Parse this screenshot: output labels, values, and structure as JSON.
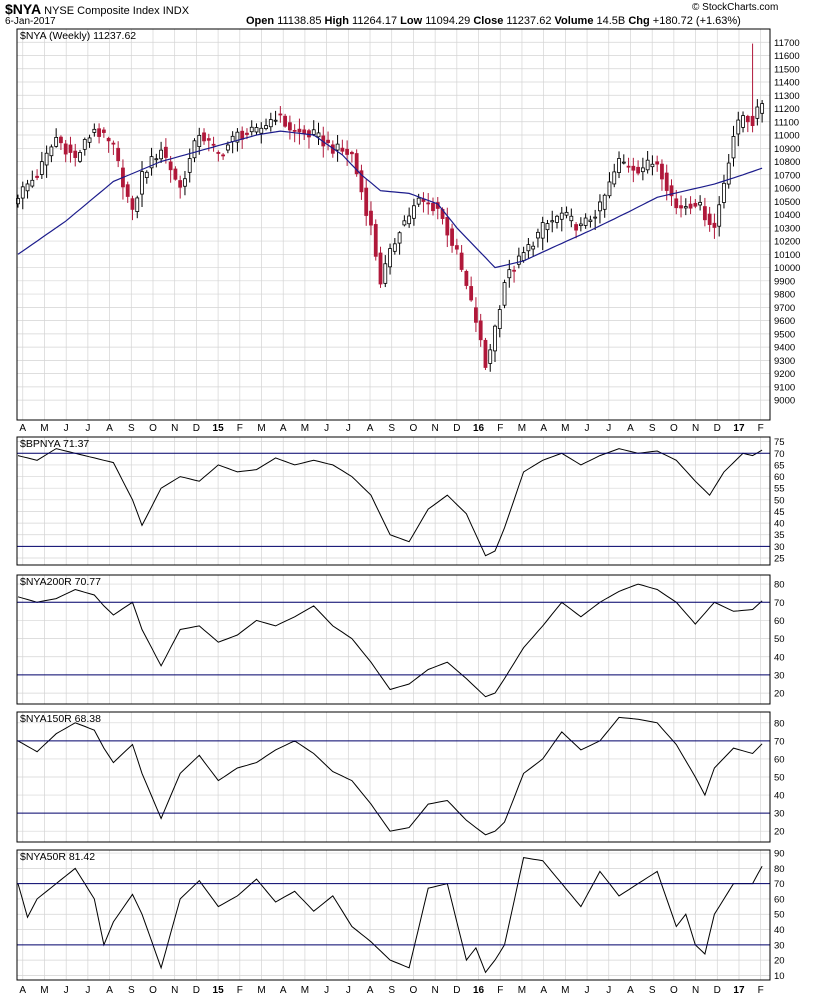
{
  "header": {
    "symbol": "$NYA",
    "name": "NYSE Composite Index",
    "exchange": "INDX",
    "date": "6-Jan-2017",
    "open_label": "Open",
    "open": "11138.85",
    "high_label": "High",
    "high": "11264.17",
    "low_label": "Low",
    "low": "11094.29",
    "close_label": "Close",
    "close": "11237.62",
    "volume_label": "Volume",
    "volume": "14.5B",
    "chg_label": "Chg",
    "chg": "+180.72 (+1.63%)",
    "watermark": "© StockCharts.com"
  },
  "colors": {
    "up": "#000000",
    "down": "#b0183a",
    "ma": "#1c1c8c",
    "ref": "#00006b",
    "grid": "#d4d4d4"
  },
  "chart_data": [
    {
      "type": "candlestick",
      "title": "$NYA (Weekly) 11237.62",
      "ylim": [
        8850,
        11800
      ],
      "yticks": [
        "11700",
        "11600",
        "11500",
        "11400",
        "11300",
        "11200",
        "11100",
        "11000",
        "10900",
        "10800",
        "10700",
        "10600",
        "10500",
        "10400",
        "10300",
        "10200",
        "10100",
        "10000",
        "9900",
        "9800",
        "9700",
        "9600",
        "9500",
        "9400",
        "9300",
        "9200",
        "9100",
        "9000"
      ],
      "xticks": [
        "A",
        "M",
        "J",
        "J",
        "A",
        "S",
        "O",
        "N",
        "D",
        "15",
        "F",
        "M",
        "A",
        "M",
        "J",
        "J",
        "A",
        "S",
        "O",
        "N",
        "D",
        "16",
        "F",
        "M",
        "A",
        "M",
        "J",
        "J",
        "A",
        "S",
        "O",
        "N",
        "D",
        "17",
        "F"
      ],
      "close_anchors": [
        [
          0,
          10550
        ],
        [
          4,
          10700
        ],
        [
          8,
          10980
        ],
        [
          12,
          10820
        ],
        [
          16,
          11050
        ],
        [
          20,
          10900
        ],
        [
          24,
          10400
        ],
        [
          26,
          10700
        ],
        [
          30,
          10900
        ],
        [
          34,
          10600
        ],
        [
          38,
          11020
        ],
        [
          42,
          10850
        ],
        [
          46,
          11000
        ],
        [
          50,
          11020
        ],
        [
          54,
          11150
        ],
        [
          58,
          11020
        ],
        [
          62,
          11000
        ],
        [
          66,
          10900
        ],
        [
          70,
          10850
        ],
        [
          74,
          10300
        ],
        [
          76,
          9900
        ],
        [
          80,
          10300
        ],
        [
          84,
          10500
        ],
        [
          88,
          10450
        ],
        [
          92,
          10100
        ],
        [
          96,
          9600
        ],
        [
          98,
          9250
        ],
        [
          100,
          9550
        ],
        [
          102,
          9900
        ],
        [
          106,
          10100
        ],
        [
          110,
          10300
        ],
        [
          114,
          10400
        ],
        [
          118,
          10300
        ],
        [
          122,
          10450
        ],
        [
          126,
          10800
        ],
        [
          130,
          10750
        ],
        [
          134,
          10800
        ],
        [
          138,
          10450
        ],
        [
          142,
          10500
        ],
        [
          146,
          10300
        ],
        [
          150,
          11000
        ],
        [
          152,
          11150
        ],
        [
          154,
          11100
        ],
        [
          156,
          11237
        ]
      ],
      "ma_anchors": [
        [
          0,
          10100
        ],
        [
          10,
          10350
        ],
        [
          20,
          10650
        ],
        [
          30,
          10800
        ],
        [
          40,
          10900
        ],
        [
          50,
          11000
        ],
        [
          55,
          11030
        ],
        [
          62,
          11000
        ],
        [
          68,
          10850
        ],
        [
          72,
          10700
        ],
        [
          76,
          10580
        ],
        [
          82,
          10560
        ],
        [
          88,
          10480
        ],
        [
          92,
          10300
        ],
        [
          96,
          10150
        ],
        [
          100,
          10000
        ],
        [
          106,
          10050
        ],
        [
          112,
          10150
        ],
        [
          120,
          10280
        ],
        [
          128,
          10420
        ],
        [
          134,
          10530
        ],
        [
          140,
          10580
        ],
        [
          146,
          10630
        ],
        [
          152,
          10700
        ],
        [
          156,
          10750
        ]
      ],
      "last_high": 11264.17,
      "last_low": 11094.29,
      "spike_high": 11690
    },
    {
      "type": "line",
      "title": "$BPNYA 71.37",
      "ylim": [
        22,
        77
      ],
      "yticks": [
        "75",
        "70",
        "65",
        "60",
        "55",
        "50",
        "45",
        "40",
        "35",
        "30",
        "25"
      ],
      "ref_lines": [
        70,
        30
      ],
      "anchors": [
        [
          0,
          69
        ],
        [
          4,
          67
        ],
        [
          8,
          72
        ],
        [
          12,
          70
        ],
        [
          16,
          68
        ],
        [
          20,
          66
        ],
        [
          24,
          50
        ],
        [
          26,
          39
        ],
        [
          30,
          55
        ],
        [
          34,
          60
        ],
        [
          38,
          58
        ],
        [
          42,
          65
        ],
        [
          46,
          62
        ],
        [
          50,
          63
        ],
        [
          54,
          68
        ],
        [
          58,
          65
        ],
        [
          62,
          67
        ],
        [
          66,
          65
        ],
        [
          70,
          60
        ],
        [
          74,
          52
        ],
        [
          78,
          35
        ],
        [
          82,
          32
        ],
        [
          86,
          46
        ],
        [
          90,
          52
        ],
        [
          94,
          44
        ],
        [
          98,
          26
        ],
        [
          100,
          28
        ],
        [
          102,
          38
        ],
        [
          106,
          62
        ],
        [
          110,
          67
        ],
        [
          114,
          70
        ],
        [
          118,
          65
        ],
        [
          122,
          69
        ],
        [
          126,
          72
        ],
        [
          130,
          70
        ],
        [
          134,
          71
        ],
        [
          138,
          67
        ],
        [
          142,
          58
        ],
        [
          145,
          52
        ],
        [
          148,
          62
        ],
        [
          152,
          70
        ],
        [
          154,
          69
        ],
        [
          156,
          71.37
        ]
      ]
    },
    {
      "type": "line",
      "title": "$NYA200R 70.77",
      "ylim": [
        14,
        85
      ],
      "yticks": [
        "80",
        "70",
        "60",
        "50",
        "40",
        "30",
        "20"
      ],
      "ref_lines": [
        70,
        30
      ],
      "anchors": [
        [
          0,
          73
        ],
        [
          4,
          70
        ],
        [
          8,
          72
        ],
        [
          12,
          77
        ],
        [
          16,
          74
        ],
        [
          18,
          68
        ],
        [
          20,
          63
        ],
        [
          24,
          70
        ],
        [
          26,
          55
        ],
        [
          30,
          35
        ],
        [
          34,
          55
        ],
        [
          38,
          57
        ],
        [
          42,
          48
        ],
        [
          46,
          52
        ],
        [
          50,
          60
        ],
        [
          54,
          57
        ],
        [
          58,
          62
        ],
        [
          62,
          68
        ],
        [
          66,
          57
        ],
        [
          70,
          50
        ],
        [
          74,
          37
        ],
        [
          78,
          22
        ],
        [
          82,
          25
        ],
        [
          86,
          33
        ],
        [
          90,
          37
        ],
        [
          94,
          28
        ],
        [
          98,
          18
        ],
        [
          100,
          20
        ],
        [
          102,
          28
        ],
        [
          106,
          45
        ],
        [
          110,
          57
        ],
        [
          114,
          70
        ],
        [
          118,
          62
        ],
        [
          122,
          70
        ],
        [
          126,
          76
        ],
        [
          130,
          80
        ],
        [
          134,
          77
        ],
        [
          138,
          70
        ],
        [
          142,
          58
        ],
        [
          146,
          70
        ],
        [
          150,
          65
        ],
        [
          154,
          66
        ],
        [
          156,
          70.77
        ]
      ]
    },
    {
      "type": "line",
      "title": "$NYA150R 68.38",
      "ylim": [
        14,
        86
      ],
      "yticks": [
        "80",
        "70",
        "60",
        "50",
        "40",
        "30",
        "20"
      ],
      "ref_lines": [
        70,
        30
      ],
      "anchors": [
        [
          0,
          70
        ],
        [
          4,
          64
        ],
        [
          8,
          74
        ],
        [
          12,
          80
        ],
        [
          16,
          76
        ],
        [
          18,
          66
        ],
        [
          20,
          58
        ],
        [
          24,
          68
        ],
        [
          26,
          52
        ],
        [
          30,
          27
        ],
        [
          34,
          52
        ],
        [
          38,
          62
        ],
        [
          42,
          48
        ],
        [
          46,
          55
        ],
        [
          50,
          58
        ],
        [
          54,
          65
        ],
        [
          58,
          70
        ],
        [
          62,
          63
        ],
        [
          66,
          53
        ],
        [
          70,
          48
        ],
        [
          74,
          35
        ],
        [
          78,
          20
        ],
        [
          82,
          22
        ],
        [
          86,
          35
        ],
        [
          90,
          37
        ],
        [
          94,
          26
        ],
        [
          98,
          18
        ],
        [
          100,
          20
        ],
        [
          102,
          25
        ],
        [
          106,
          52
        ],
        [
          110,
          60
        ],
        [
          114,
          75
        ],
        [
          118,
          65
        ],
        [
          122,
          70
        ],
        [
          126,
          83
        ],
        [
          130,
          82
        ],
        [
          134,
          80
        ],
        [
          138,
          68
        ],
        [
          142,
          50
        ],
        [
          144,
          40
        ],
        [
          146,
          55
        ],
        [
          150,
          66
        ],
        [
          154,
          63
        ],
        [
          156,
          68.38
        ]
      ]
    },
    {
      "type": "line",
      "title": "$NYA50R 81.42",
      "ylim": [
        7,
        92
      ],
      "yticks": [
        "90",
        "80",
        "70",
        "60",
        "50",
        "40",
        "30",
        "20",
        "10"
      ],
      "ref_lines": [
        70,
        30
      ],
      "anchors": [
        [
          0,
          70
        ],
        [
          2,
          48
        ],
        [
          4,
          60
        ],
        [
          8,
          70
        ],
        [
          12,
          80
        ],
        [
          16,
          60
        ],
        [
          18,
          30
        ],
        [
          20,
          45
        ],
        [
          24,
          63
        ],
        [
          26,
          50
        ],
        [
          30,
          15
        ],
        [
          34,
          60
        ],
        [
          38,
          72
        ],
        [
          42,
          55
        ],
        [
          46,
          62
        ],
        [
          50,
          73
        ],
        [
          54,
          58
        ],
        [
          58,
          65
        ],
        [
          62,
          52
        ],
        [
          66,
          62
        ],
        [
          70,
          42
        ],
        [
          74,
          32
        ],
        [
          78,
          20
        ],
        [
          82,
          15
        ],
        [
          86,
          67
        ],
        [
          90,
          70
        ],
        [
          92,
          45
        ],
        [
          94,
          20
        ],
        [
          96,
          28
        ],
        [
          98,
          12
        ],
        [
          100,
          20
        ],
        [
          102,
          30
        ],
        [
          106,
          87
        ],
        [
          110,
          85
        ],
        [
          114,
          70
        ],
        [
          118,
          55
        ],
        [
          122,
          78
        ],
        [
          126,
          62
        ],
        [
          130,
          70
        ],
        [
          134,
          78
        ],
        [
          138,
          42
        ],
        [
          140,
          50
        ],
        [
          142,
          30
        ],
        [
          144,
          24
        ],
        [
          146,
          50
        ],
        [
          150,
          70
        ],
        [
          154,
          70
        ],
        [
          156,
          81.42
        ]
      ]
    }
  ]
}
